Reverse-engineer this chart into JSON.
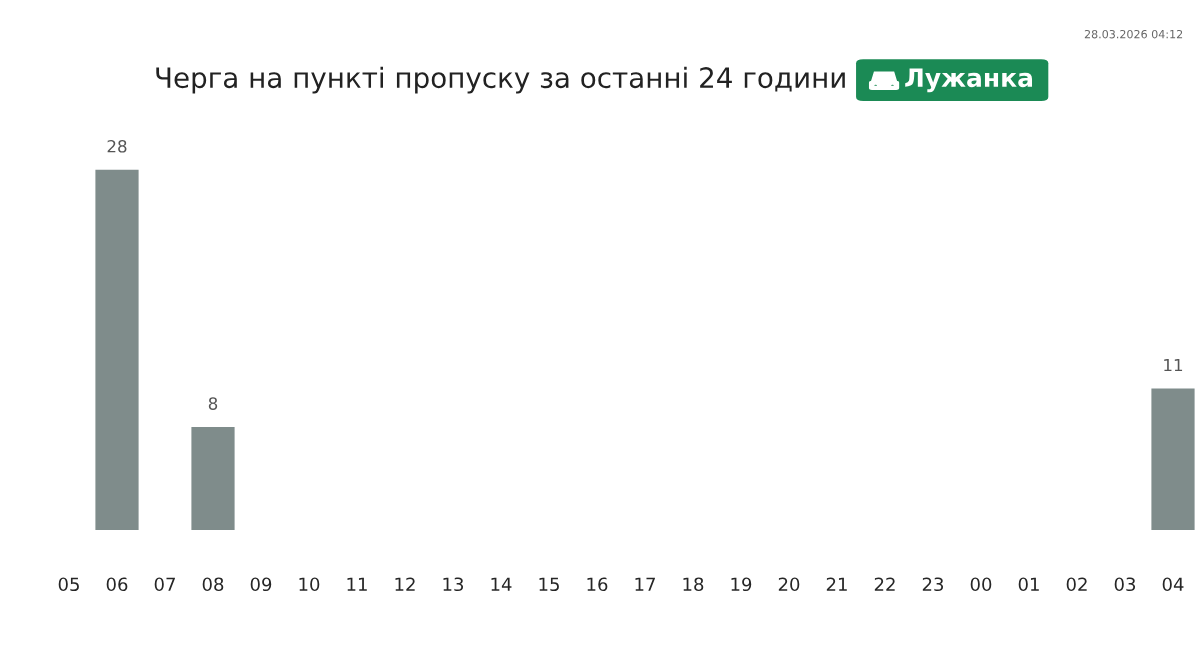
{
  "chart_data": {
    "type": "bar",
    "title": "Черга на пункті пропуску за останні 24 години",
    "subtitle": "Лужанка",
    "categories": [
      "05",
      "06",
      "07",
      "08",
      "09",
      "10",
      "11",
      "12",
      "13",
      "14",
      "15",
      "16",
      "17",
      "18",
      "19",
      "20",
      "21",
      "22",
      "23",
      "00",
      "01",
      "02",
      "03",
      "04"
    ],
    "values": [
      null,
      28,
      null,
      8,
      null,
      null,
      null,
      null,
      null,
      null,
      null,
      null,
      null,
      null,
      null,
      null,
      null,
      null,
      null,
      null,
      null,
      null,
      null,
      11
    ],
    "color": "#7f8c8b",
    "data_labels": true,
    "grid": false,
    "legend": false,
    "annotations": [
      "28.03.2026 04:12"
    ]
  }
}
